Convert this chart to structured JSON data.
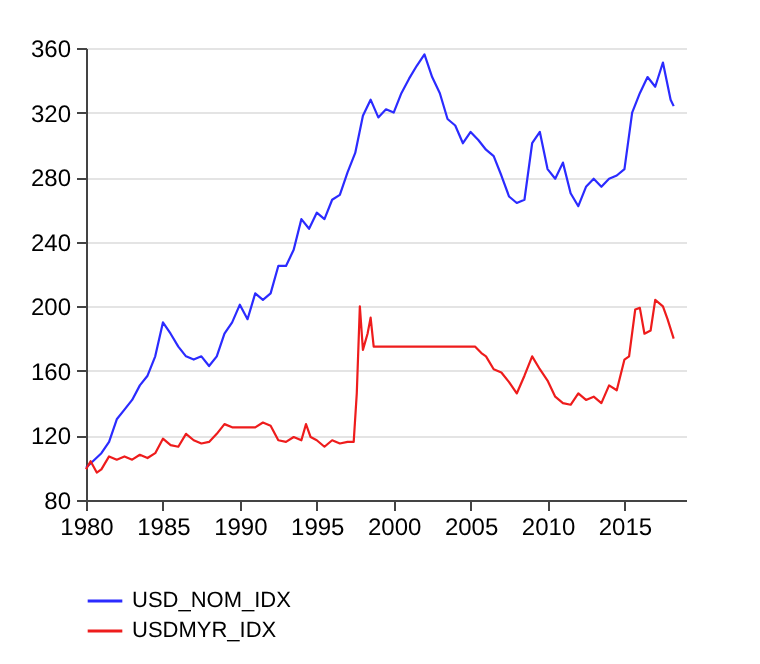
{
  "chart_data": {
    "type": "line",
    "xlim": [
      1980,
      2019
    ],
    "xticks": [
      1980,
      1985,
      1990,
      1995,
      2000,
      2005,
      2010,
      2015
    ],
    "ylim": [
      80,
      360
    ],
    "yticks": [
      80,
      120,
      160,
      200,
      240,
      280,
      320,
      360
    ],
    "grid": "y",
    "legend": "bottom",
    "line_style": "solid",
    "marker": "none",
    "series": [
      {
        "name": "USD_NOM_IDX",
        "color": "#2b2bff",
        "x": [
          1980,
          1981,
          1981.5,
          1982,
          1982.5,
          1983,
          1983.5,
          1984,
          1984.5,
          1985,
          1985.5,
          1986,
          1986.5,
          1987,
          1987.5,
          1988,
          1988.5,
          1989,
          1989.5,
          1990,
          1990.5,
          1991,
          1991.5,
          1992,
          1992.5,
          1993,
          1993.5,
          1994,
          1994.5,
          1995,
          1995.5,
          1996,
          1996.5,
          1997,
          1997.5,
          1998,
          1998.5,
          1999,
          1999.5,
          2000,
          2000.5,
          2001,
          2001.5,
          2002,
          2002.5,
          2003,
          2003.5,
          2004,
          2004.5,
          2005,
          2005.5,
          2006,
          2006.5,
          2007,
          2007.5,
          2008,
          2008.5,
          2009,
          2009.5,
          2010,
          2010.5,
          2011,
          2011.5,
          2012,
          2012.5,
          2013,
          2013.5,
          2014,
          2014.5,
          2015,
          2015.5,
          2016,
          2016.5,
          2017,
          2017.5,
          2018,
          2018.2
        ],
        "values": [
          100,
          109,
          116,
          130,
          136,
          142,
          151,
          157,
          169,
          190,
          183,
          175,
          169,
          167,
          169,
          163,
          169,
          183,
          190,
          201,
          192,
          208,
          204,
          208,
          225,
          225,
          235,
          254,
          248,
          258,
          254,
          266,
          269,
          283,
          295,
          318,
          328,
          317,
          322,
          320,
          332,
          341,
          349,
          356,
          342,
          332,
          316,
          312,
          301,
          308,
          303,
          297,
          293,
          281,
          268,
          264,
          266,
          301,
          308,
          285,
          279,
          289,
          270,
          262,
          274,
          279,
          274,
          279,
          281,
          285,
          320,
          332,
          342,
          336,
          351,
          328,
          324
        ]
      },
      {
        "name": "USDMYR_IDX",
        "color": "#ee1c1c",
        "x": [
          1980,
          1980.3,
          1980.7,
          1981,
          1981.5,
          1982,
          1982.5,
          1983,
          1983.5,
          1984,
          1984.5,
          1985,
          1985.5,
          1986,
          1986.5,
          1987,
          1987.5,
          1988,
          1988.5,
          1989,
          1989.5,
          1990,
          1991,
          1991.5,
          1992,
          1992.5,
          1993,
          1993.5,
          1994,
          1994.3,
          1994.6,
          1995,
          1995.5,
          1996,
          1996.5,
          1997,
          1997.4,
          1997.6,
          1997.8,
          1998,
          1998.3,
          1998.5,
          1998.7,
          2005.3,
          2005.7,
          2006,
          2006.5,
          2007,
          2007.5,
          2008,
          2008.5,
          2009,
          2009.5,
          2010,
          2010.5,
          2011,
          2011.5,
          2012,
          2012.5,
          2013,
          2013.5,
          2014,
          2014.5,
          2015,
          2015.3,
          2015.7,
          2016,
          2016.3,
          2016.7,
          2017,
          2017.5,
          2017.8,
          2018.2
        ],
        "values": [
          99,
          104,
          97,
          99,
          107,
          105,
          107,
          105,
          108,
          106,
          109,
          118,
          114,
          113,
          121,
          117,
          115,
          116,
          121,
          127,
          125,
          125,
          125,
          128,
          126,
          117,
          116,
          119,
          117,
          127,
          119,
          117,
          113,
          117,
          115,
          116,
          116,
          146,
          200,
          173,
          183,
          193,
          175,
          175,
          171,
          169,
          161,
          159,
          153,
          146,
          157,
          169,
          161,
          154,
          144,
          140,
          139,
          146,
          142,
          144,
          140,
          151,
          148,
          167,
          169,
          198,
          199,
          183,
          185,
          204,
          200,
          192,
          180
        ]
      }
    ]
  }
}
